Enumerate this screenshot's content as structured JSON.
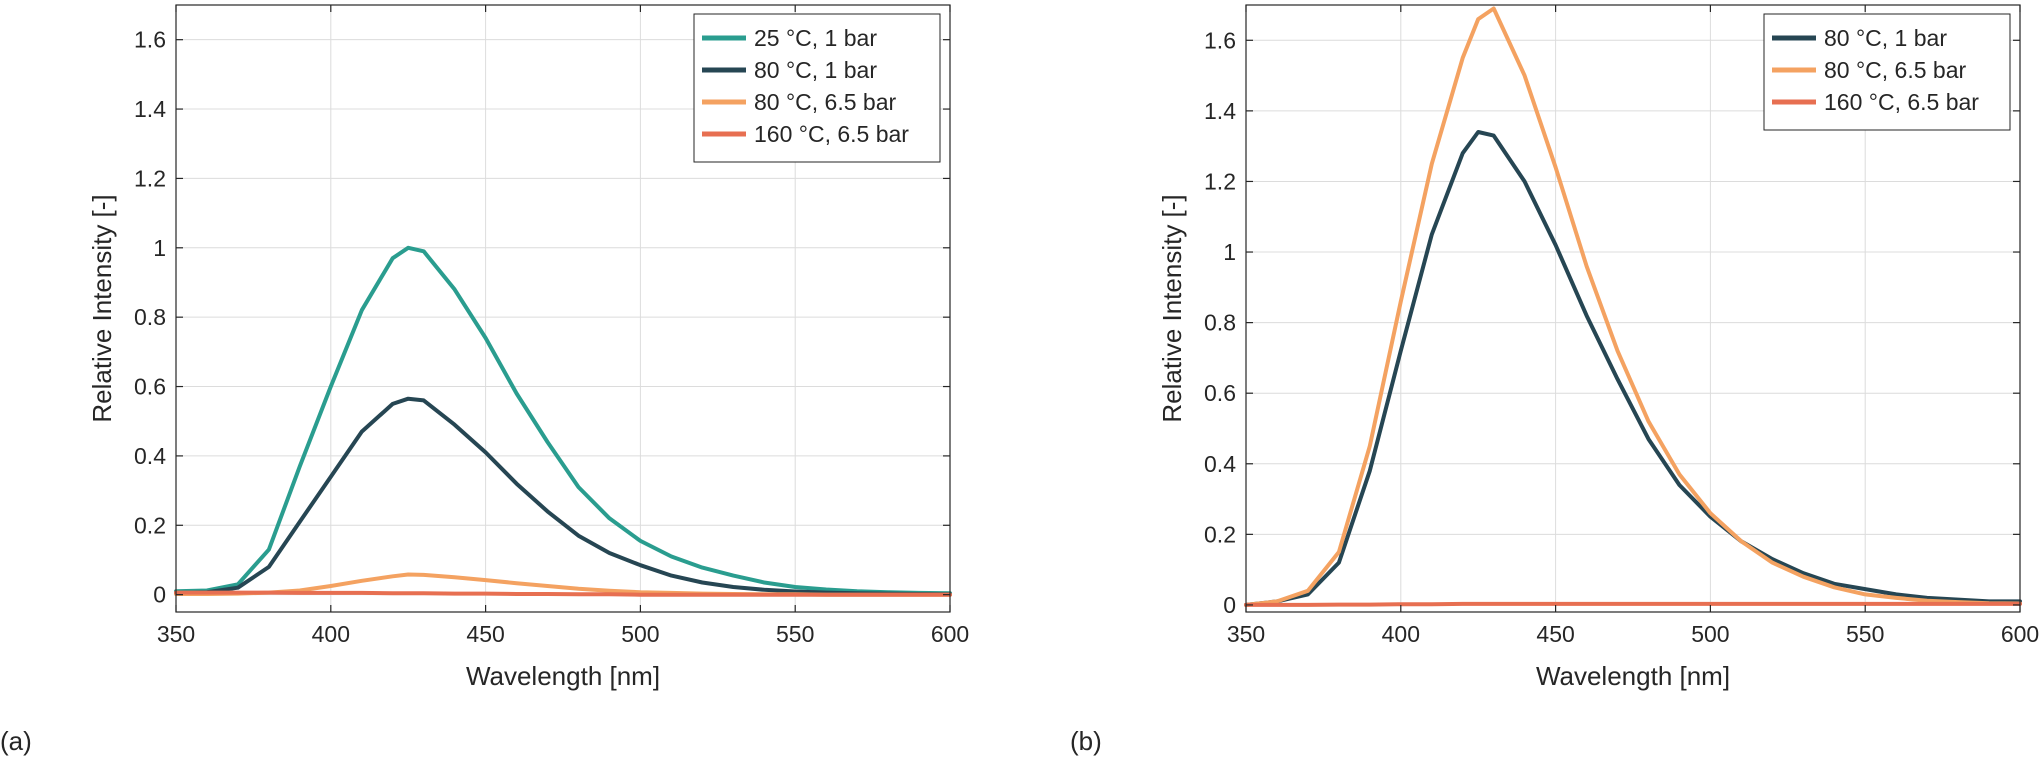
{
  "chart_data": [
    {
      "panel_label": "(a)",
      "type": "line",
      "xlabel": "Wavelength [nm]",
      "ylabel": "Relative Intensity [-]",
      "xlim": [
        350,
        600
      ],
      "ylim": [
        -0.05,
        1.7
      ],
      "xticks": [
        350,
        400,
        450,
        500,
        550,
        600
      ],
      "xtick_labels": [
        "350",
        "400",
        "450",
        "500",
        "550",
        "600"
      ],
      "yticks": [
        0,
        0.2,
        0.4,
        0.6,
        0.8,
        1,
        1.2,
        1.4,
        1.6
      ],
      "ytick_labels": [
        "0",
        "0.2",
        "0.4",
        "0.6",
        "0.8",
        "1",
        "1.2",
        "1.4",
        "1.6"
      ],
      "grid": true,
      "legend_position": "top-right",
      "x": [
        350,
        360,
        370,
        380,
        390,
        400,
        410,
        420,
        425,
        430,
        440,
        450,
        460,
        470,
        480,
        490,
        500,
        510,
        520,
        530,
        540,
        550,
        560,
        570,
        580,
        590,
        600
      ],
      "series": [
        {
          "name": "25 °C, 1 bar",
          "color": "#2a9d8f",
          "values": [
            0.01,
            0.012,
            0.03,
            0.13,
            0.37,
            0.6,
            0.82,
            0.97,
            1.0,
            0.99,
            0.88,
            0.74,
            0.58,
            0.44,
            0.31,
            0.22,
            0.155,
            0.11,
            0.078,
            0.055,
            0.035,
            0.022,
            0.015,
            0.01,
            0.007,
            0.005,
            0.004
          ]
        },
        {
          "name": "80 °C, 1 bar",
          "color": "#264653",
          "values": [
            0.005,
            0.007,
            0.02,
            0.08,
            0.21,
            0.34,
            0.47,
            0.55,
            0.565,
            0.56,
            0.49,
            0.41,
            0.32,
            0.24,
            0.17,
            0.12,
            0.085,
            0.055,
            0.035,
            0.022,
            0.014,
            0.009,
            0.006,
            0.004,
            0.003,
            0.002,
            0.001
          ]
        },
        {
          "name": "80 °C, 6.5 bar",
          "color": "#f4a261",
          "values": [
            0.002,
            0.002,
            0.003,
            0.006,
            0.012,
            0.025,
            0.04,
            0.053,
            0.058,
            0.057,
            0.05,
            0.042,
            0.033,
            0.025,
            0.017,
            0.011,
            0.007,
            0.005,
            0.003,
            0.002,
            0.001,
            0.001,
            0.0,
            0.0,
            0.0,
            0.0,
            0.0
          ]
        },
        {
          "name": "160 °C, 6.5 bar",
          "color": "#e76f51",
          "values": [
            0.006,
            0.006,
            0.006,
            0.006,
            0.005,
            0.005,
            0.005,
            0.004,
            0.004,
            0.004,
            0.003,
            0.003,
            0.002,
            0.002,
            0.001,
            0.001,
            0.0,
            0.0,
            0.0,
            0.0,
            0.0,
            0.0,
            0.0,
            0.0,
            0.0,
            0.0,
            0.0
          ]
        }
      ]
    },
    {
      "panel_label": "(b)",
      "type": "line",
      "xlabel": "Wavelength [nm]",
      "ylabel": "Relative Intensity [-]",
      "xlim": [
        350,
        600
      ],
      "ylim": [
        -0.02,
        1.7
      ],
      "xticks": [
        350,
        400,
        450,
        500,
        550,
        600
      ],
      "xtick_labels": [
        "350",
        "400",
        "450",
        "500",
        "550",
        "600"
      ],
      "yticks": [
        0,
        0.2,
        0.4,
        0.6,
        0.8,
        1,
        1.2,
        1.4,
        1.6
      ],
      "ytick_labels": [
        "0",
        "0.2",
        "0.4",
        "0.6",
        "0.8",
        "1",
        "1.2",
        "1.4",
        "1.6"
      ],
      "grid": true,
      "legend_position": "top-right",
      "x": [
        350,
        360,
        370,
        380,
        390,
        400,
        410,
        420,
        425,
        430,
        440,
        450,
        460,
        470,
        480,
        490,
        500,
        510,
        520,
        530,
        540,
        550,
        560,
        570,
        580,
        590,
        600
      ],
      "series": [
        {
          "name": "80 °C, 1 bar",
          "color": "#264653",
          "values": [
            0.0,
            0.01,
            0.03,
            0.12,
            0.38,
            0.72,
            1.05,
            1.28,
            1.34,
            1.33,
            1.2,
            1.02,
            0.82,
            0.64,
            0.47,
            0.34,
            0.25,
            0.18,
            0.13,
            0.09,
            0.06,
            0.045,
            0.03,
            0.02,
            0.015,
            0.01,
            0.01
          ]
        },
        {
          "name": "80 °C, 6.5 bar",
          "color": "#f4a261",
          "values": [
            0.0,
            0.01,
            0.04,
            0.15,
            0.45,
            0.86,
            1.25,
            1.55,
            1.66,
            1.69,
            1.5,
            1.24,
            0.96,
            0.72,
            0.52,
            0.37,
            0.26,
            0.18,
            0.12,
            0.08,
            0.05,
            0.03,
            0.02,
            0.012,
            0.008,
            0.005,
            0.004
          ]
        },
        {
          "name": "160 °C, 6.5 bar",
          "color": "#e76f51",
          "values": [
            0.0,
            0.0,
            0.0,
            0.001,
            0.001,
            0.002,
            0.002,
            0.003,
            0.003,
            0.003,
            0.003,
            0.003,
            0.003,
            0.003,
            0.003,
            0.003,
            0.003,
            0.003,
            0.003,
            0.003,
            0.003,
            0.003,
            0.003,
            0.003,
            0.003,
            0.003,
            0.003
          ]
        }
      ]
    }
  ]
}
